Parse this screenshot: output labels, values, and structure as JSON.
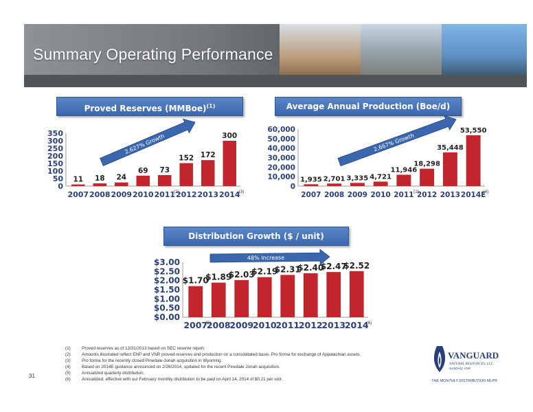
{
  "title": "Summary Operating Performance",
  "page_number": "31",
  "charts": [
    {
      "header": "Proved Reserves (MMBoe)",
      "header_sup": "(1)",
      "growth_label": "2,627% Growth",
      "categories": [
        "2007",
        "2008",
        "2009",
        "2010",
        "2011",
        "2012",
        "2013",
        "2014"
      ],
      "values": [
        11,
        18,
        24,
        69,
        73,
        152,
        172,
        300
      ],
      "labels": [
        "11",
        "18",
        "24",
        "69",
        "73",
        "152",
        "172",
        "300"
      ],
      "yticks": [
        "0",
        "50",
        "100",
        "150",
        "200",
        "250",
        "300",
        "350"
      ],
      "notes": {
        "4": "(2)",
        "7": "(3)"
      }
    },
    {
      "header": "Average Annual Production (Boe/d)",
      "header_sup": "",
      "growth_label": "2,667% Growth",
      "categories": [
        "2007",
        "2008",
        "2009",
        "2010",
        "2011",
        "2012",
        "2013",
        "2014E"
      ],
      "values": [
        1935,
        2701,
        3335,
        4721,
        11946,
        18298,
        35448,
        53550
      ],
      "labels": [
        "1,935",
        "2,701",
        "3,335",
        "4,721",
        "11,946",
        "18,298",
        "35,448",
        "53,550"
      ],
      "yticks": [
        "0",
        "10,000",
        "20,000",
        "30,000",
        "40,000",
        "50,000",
        "60,000"
      ],
      "notes": {
        "4": "(2)",
        "7": "(4)"
      }
    },
    {
      "header": "Distribution Growth ($ / unit)",
      "header_sup": "",
      "growth_label": "48% Increase",
      "categories": [
        "2007",
        "2008",
        "2009",
        "2010",
        "2011",
        "2012",
        "2013",
        "2014"
      ],
      "values": [
        1.7,
        1.89,
        2.03,
        2.19,
        2.31,
        2.4,
        2.47,
        2.52
      ],
      "labels": [
        "$1.70",
        "$1.89",
        "$2.03",
        "$2.19",
        "$2.31",
        "$2.40",
        "$2.47",
        "$2.52"
      ],
      "yticks": [
        "$0.00",
        "$0.50",
        "$1.00",
        "$1.50",
        "$2.00",
        "$2.50",
        "$3.00"
      ],
      "notes": {
        "0": "(5)",
        "7": "(6)"
      }
    }
  ],
  "chart_data": [
    {
      "type": "bar",
      "title": "Proved Reserves (MMBoe)",
      "categories": [
        "2007",
        "2008",
        "2009",
        "2010",
        "2011",
        "2012",
        "2013",
        "2014"
      ],
      "values": [
        11,
        18,
        24,
        69,
        73,
        152,
        172,
        300
      ],
      "ylim": [
        0,
        350
      ],
      "colors": [
        "#c0262b"
      ]
    },
    {
      "type": "bar",
      "title": "Average Annual Production (Boe/d)",
      "categories": [
        "2007",
        "2008",
        "2009",
        "2010",
        "2011",
        "2012",
        "2013",
        "2014E"
      ],
      "values": [
        1935,
        2701,
        3335,
        4721,
        11946,
        18298,
        35448,
        53550
      ],
      "ylim": [
        0,
        60000
      ],
      "colors": [
        "#c0262b"
      ]
    },
    {
      "type": "bar",
      "title": "Distribution Growth ($ / unit)",
      "categories": [
        "2007",
        "2008",
        "2009",
        "2010",
        "2011",
        "2012",
        "2013",
        "2014"
      ],
      "values": [
        1.7,
        1.89,
        2.03,
        2.19,
        2.31,
        2.4,
        2.47,
        2.52
      ],
      "ylim": [
        0,
        3.0
      ],
      "colors": [
        "#c0262b"
      ]
    }
  ],
  "footnotes": [
    {
      "n": "(1)",
      "text": "Proved reserves as of 12/31/2013 based on SEC reserve report."
    },
    {
      "n": "(2)",
      "text": "Amounts illustrated reflect ENP and VNR proved reserves and production on a consolidated basis. Pro forma for exchange of Appalachian assets."
    },
    {
      "n": "(3)",
      "text": "Pro forma for the recently closed  Pinedale-Jonah acquisition in Wyoming."
    },
    {
      "n": "(4)",
      "text": "Based on 2014E guidance announced on 2/26/2014, updated for the recent Pinedale Jonah acquisition."
    },
    {
      "n": "(5)",
      "text": "Annualized quarterly distribution."
    },
    {
      "n": "(6)",
      "text": "Annualized, effective with our February monthly distribution to be paid on April 14, 2014 of $0.21 per unit."
    }
  ],
  "logo": {
    "name": "VANGUARD",
    "sub": "NATURAL RESOURCES, LLC",
    "ticker": "NASDAQ: VNR",
    "tagline": "THE MONTHLY DISTRIBUTION MLP®"
  },
  "colors": {
    "bar": "#c0262b",
    "header": "#3b67ae",
    "arrow": "#3b67ae"
  }
}
